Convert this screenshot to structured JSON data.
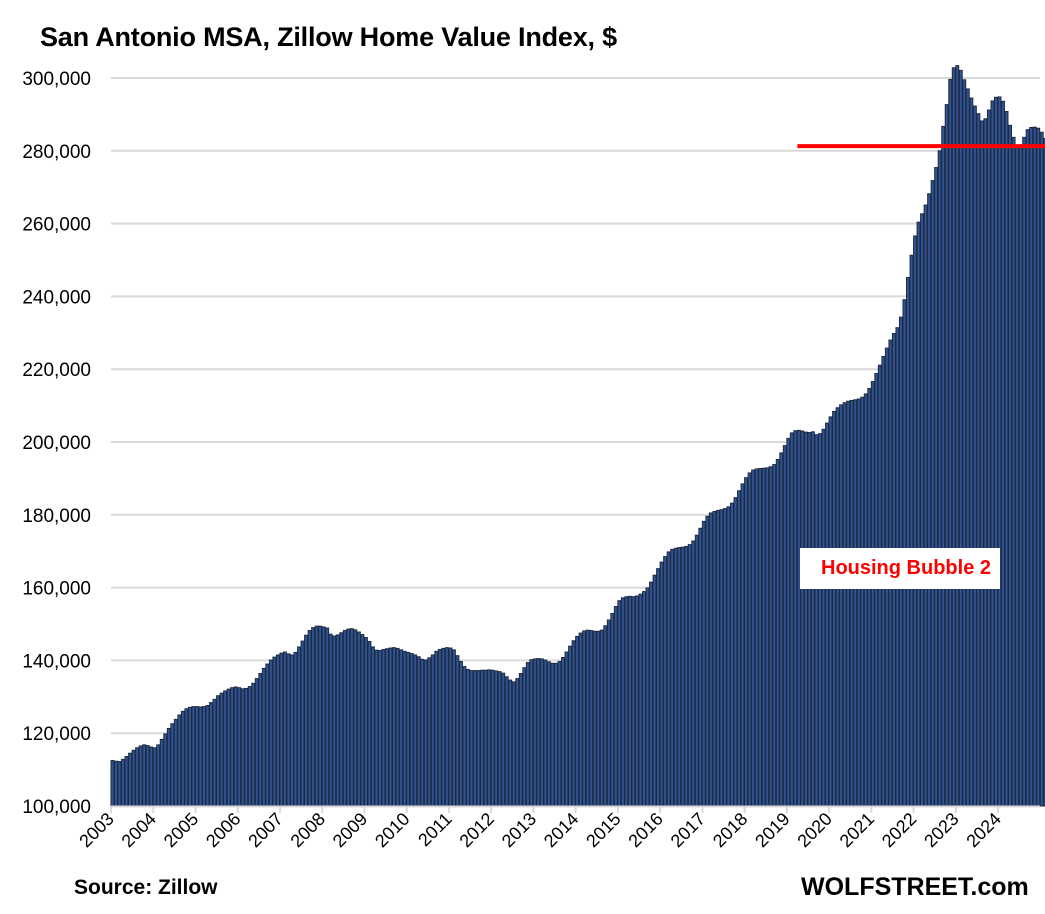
{
  "chart_data": {
    "type": "bar",
    "title": "San Antonio MSA, Zillow Home Value Index, $",
    "xlabel": "",
    "ylabel": "",
    "frequency": "monthly",
    "start": "2003-01",
    "ylim": [
      100000,
      300000
    ],
    "yticks": [
      100000,
      120000,
      140000,
      160000,
      180000,
      200000,
      220000,
      240000,
      260000,
      280000,
      300000
    ],
    "ytick_labels": [
      "100,000",
      "120,000",
      "140,000",
      "160,000",
      "180,000",
      "200,000",
      "220,000",
      "240,000",
      "260,000",
      "280,000",
      "300,000"
    ],
    "xtick_labels": [
      "2003",
      "2004",
      "2005",
      "2006",
      "2007",
      "2008",
      "2009",
      "2010",
      "2011",
      "2012",
      "2013",
      "2014",
      "2015",
      "2016",
      "2017",
      "2018",
      "2019",
      "2020",
      "2021",
      "2022",
      "2023",
      "2024"
    ],
    "grid": true,
    "bar_color": "#2f5597",
    "bar_edge_color": "#1f2a3f",
    "reference_line": {
      "value": 281300,
      "color": "#ff0000",
      "from": "2019-04"
    },
    "annotation": {
      "text": "Housing Bubble 2",
      "color": "#ff0000"
    },
    "values": [
      112500,
      112300,
      112200,
      112800,
      113600,
      114500,
      115300,
      116000,
      116500,
      116800,
      116600,
      116200,
      116000,
      116800,
      118300,
      119800,
      121300,
      122600,
      123800,
      125000,
      126000,
      126700,
      127100,
      127300,
      127300,
      127200,
      127300,
      127600,
      128400,
      129300,
      130300,
      131000,
      131600,
      132100,
      132500,
      132700,
      132500,
      132200,
      132300,
      132800,
      133700,
      135000,
      136400,
      137800,
      139000,
      140100,
      140900,
      141500,
      142000,
      142300,
      141800,
      141500,
      142200,
      143700,
      145300,
      146900,
      148200,
      149000,
      149400,
      149400,
      149200,
      148900,
      147200,
      146700,
      147000,
      147600,
      148200,
      148600,
      148700,
      148400,
      147800,
      147100,
      146300,
      145200,
      143700,
      142800,
      142700,
      143000,
      143200,
      143400,
      143500,
      143300,
      142900,
      142500,
      142200,
      141900,
      141500,
      141000,
      140300,
      140100,
      140700,
      141500,
      142500,
      143000,
      143300,
      143500,
      143400,
      142900,
      141300,
      139700,
      138300,
      137500,
      137200,
      137200,
      137200,
      137300,
      137300,
      137400,
      137300,
      137100,
      136900,
      136500,
      135500,
      134600,
      134100,
      135000,
      136400,
      138000,
      139400,
      140200,
      140400,
      140500,
      140400,
      140100,
      139600,
      139200,
      139200,
      139700,
      140800,
      142300,
      143900,
      145400,
      146600,
      147500,
      148100,
      148300,
      148200,
      148000,
      148000,
      148300,
      149500,
      151100,
      152900,
      154800,
      156400,
      157200,
      157500,
      157600,
      157500,
      157700,
      158200,
      158900,
      159900,
      161500,
      163400,
      165200,
      167000,
      168500,
      169800,
      170500,
      170800,
      171000,
      171100,
      171300,
      171800,
      172800,
      174400,
      176300,
      178200,
      179600,
      180500,
      180900,
      181200,
      181400,
      181700,
      182200,
      183200,
      184700,
      186600,
      188500,
      190200,
      191500,
      192300,
      192600,
      192700,
      192800,
      192900,
      193200,
      193800,
      195200,
      197000,
      199000,
      201000,
      202500,
      203100,
      203200,
      203000,
      202700,
      202600,
      202800,
      202000,
      202300,
      203500,
      205200,
      206900,
      208400,
      209400,
      210200,
      210800,
      211200,
      211400,
      211600,
      211800,
      212300,
      213200,
      214700,
      216600,
      218800,
      221100,
      223500,
      225800,
      228000,
      229800,
      231400,
      234300,
      239100,
      245200,
      251300,
      256600,
      260400,
      262700,
      265100,
      268200,
      271800,
      275400,
      280000,
      286700,
      292700,
      299600,
      302800,
      303400,
      302100,
      299500,
      297000,
      294500,
      292300,
      290200,
      288200,
      288800,
      291200,
      293700,
      294700,
      294800,
      293600,
      290800,
      287000,
      283700,
      281400,
      281300,
      283700,
      285800,
      286400,
      286500,
      286200,
      285100,
      283400,
      281600
    ]
  },
  "footer": {
    "source": "Source: Zillow",
    "brand": "WOLFSTREET.com"
  }
}
